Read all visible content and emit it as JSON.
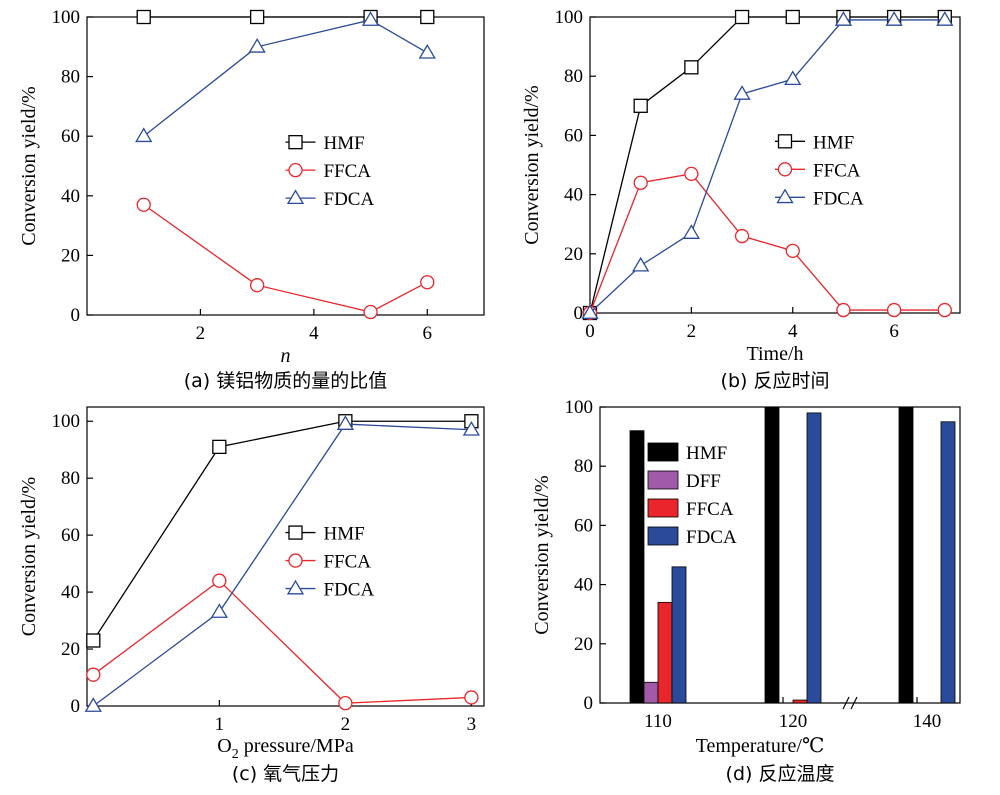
{
  "colors": {
    "hmf": "#000000",
    "ffca": "#e8262b",
    "fdca": "#2b4a9a",
    "dff": "#a05aa8",
    "axis": "#000000"
  },
  "chart_data": [
    {
      "id": "a",
      "type": "line",
      "caption": "(a) 镁铝物质的量的比值",
      "xlabel": "n",
      "ylabel": "Conversion yield/%",
      "xlim": [
        0,
        7
      ],
      "ylim": [
        0,
        100
      ],
      "xticks": [
        2,
        4,
        6
      ],
      "yticks": [
        0,
        20,
        40,
        60,
        80,
        100
      ],
      "legend_position": "center-right",
      "series": [
        {
          "name": "HMF",
          "marker": "square",
          "color": "#000000",
          "x": [
            1,
            3,
            5,
            6
          ],
          "y": [
            100,
            100,
            100,
            100
          ]
        },
        {
          "name": "FFCA",
          "marker": "circle",
          "color": "#e8262b",
          "x": [
            1,
            3,
            5,
            6
          ],
          "y": [
            37,
            10,
            1,
            11
          ]
        },
        {
          "name": "FDCA",
          "marker": "triangle",
          "color": "#2b4a9a",
          "x": [
            1,
            3,
            5,
            6
          ],
          "y": [
            60,
            90,
            99,
            88
          ]
        }
      ]
    },
    {
      "id": "b",
      "type": "line",
      "caption": "(b) 反应时间",
      "xlabel": "Time/h",
      "ylabel": "Conversion yield/%",
      "xlim": [
        0,
        7.3
      ],
      "ylim": [
        0,
        100
      ],
      "xticks": [
        0,
        2,
        4,
        6
      ],
      "yticks": [
        0,
        20,
        40,
        60,
        80,
        100
      ],
      "legend_position": "center-right",
      "series": [
        {
          "name": "HMF",
          "marker": "square",
          "color": "#000000",
          "x": [
            0,
            1,
            2,
            3,
            4,
            5,
            6,
            7
          ],
          "y": [
            0,
            70,
            83,
            100,
            100,
            100,
            100,
            100
          ]
        },
        {
          "name": "FFCA",
          "marker": "circle",
          "color": "#e8262b",
          "x": [
            0,
            1,
            2,
            3,
            4,
            5,
            6,
            7
          ],
          "y": [
            0,
            44,
            47,
            26,
            21,
            1,
            1,
            1
          ]
        },
        {
          "name": "FDCA",
          "marker": "triangle",
          "color": "#2b4a9a",
          "x": [
            0,
            1,
            2,
            3,
            4,
            5,
            6,
            7
          ],
          "y": [
            0,
            16,
            27,
            74,
            79,
            99,
            99,
            99
          ]
        }
      ]
    },
    {
      "id": "c",
      "type": "line",
      "caption": "(c) 氧气压力",
      "xlabel_main": "O",
      "xlabel_sub": "2",
      "xlabel_rest": " pressure/MPa",
      "ylabel": "Conversion yield/%",
      "xlim": [
        -0.05,
        3.1
      ],
      "ylim": [
        0,
        105
      ],
      "xticks": [
        1,
        2,
        3
      ],
      "yticks": [
        0,
        20,
        40,
        60,
        80,
        100
      ],
      "legend_position": "center-right",
      "series": [
        {
          "name": "HMF",
          "marker": "square",
          "color": "#000000",
          "x": [
            0,
            1,
            2,
            3
          ],
          "y": [
            23,
            91,
            100,
            100
          ]
        },
        {
          "name": "FFCA",
          "marker": "circle",
          "color": "#e8262b",
          "x": [
            0,
            1,
            2,
            3
          ],
          "y": [
            11,
            44,
            1,
            3
          ]
        },
        {
          "name": "FDCA",
          "marker": "triangle",
          "color": "#2b4a9a",
          "x": [
            0,
            1,
            2,
            3
          ],
          "y": [
            0,
            33,
            99,
            97
          ]
        }
      ]
    },
    {
      "id": "d",
      "type": "bar",
      "caption": "(d) 反应温度",
      "xlabel": "Temperature/℃",
      "ylabel": "Conversion yield/%",
      "ylim": [
        0,
        100
      ],
      "yticks": [
        0,
        20,
        40,
        60,
        80,
        100
      ],
      "categories": [
        "110",
        "120",
        "140"
      ],
      "axis_break": "between 120 and 140",
      "legend_position": "top-left",
      "series": [
        {
          "name": "HMF",
          "color": "#000000",
          "values": [
            92,
            100,
            100
          ]
        },
        {
          "name": "DFF",
          "color": "#a05aa8",
          "values": [
            7,
            0,
            0
          ]
        },
        {
          "name": "FFCA",
          "color": "#e8262b",
          "values": [
            34,
            1,
            0
          ]
        },
        {
          "name": "FDCA",
          "color": "#2b4a9a",
          "values": [
            46,
            98,
            95
          ]
        }
      ]
    }
  ]
}
